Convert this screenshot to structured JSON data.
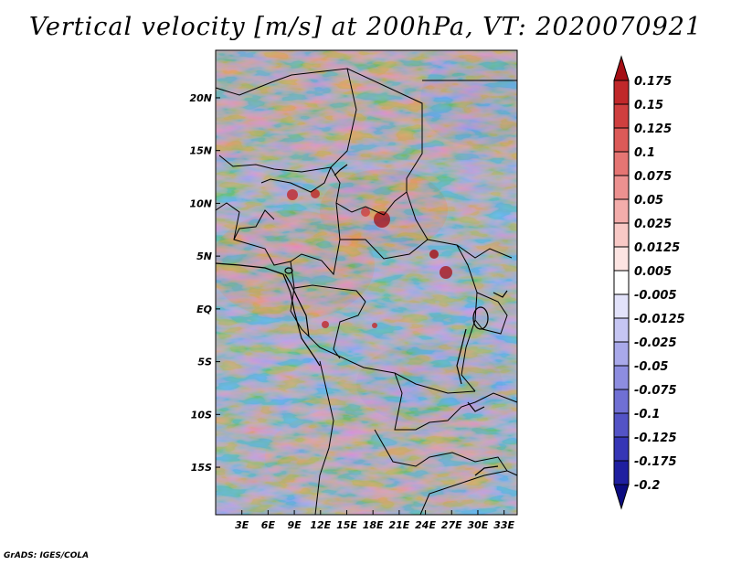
{
  "title": "Vertical velocity [m/s] at 200hPa, VT: 2020070921",
  "credit": "GrADS: IGES/COLA",
  "map": {
    "variable": "Vertical velocity",
    "units": "m/s",
    "level": "200hPa",
    "valid_time": "2020070921",
    "lon_range": [
      0,
      34.5
    ],
    "lat_range": [
      -19.5,
      24.5
    ],
    "lon_ticks": [
      {
        "value": 3,
        "label": "3E"
      },
      {
        "value": 6,
        "label": "6E"
      },
      {
        "value": 9,
        "label": "9E"
      },
      {
        "value": 12,
        "label": "12E"
      },
      {
        "value": 15,
        "label": "15E"
      },
      {
        "value": 18,
        "label": "18E"
      },
      {
        "value": 21,
        "label": "21E"
      },
      {
        "value": 24,
        "label": "24E"
      },
      {
        "value": 27,
        "label": "27E"
      },
      {
        "value": 30,
        "label": "30E"
      },
      {
        "value": 33,
        "label": "33E"
      }
    ],
    "lat_ticks": [
      {
        "value": 20,
        "label": "20N"
      },
      {
        "value": 15,
        "label": "15N"
      },
      {
        "value": 10,
        "label": "10N"
      },
      {
        "value": 5,
        "label": "5N"
      },
      {
        "value": 0,
        "label": "EQ"
      },
      {
        "value": -5,
        "label": "5S"
      },
      {
        "value": -10,
        "label": "10S"
      },
      {
        "value": -15,
        "label": "15S"
      }
    ]
  },
  "colorbar": {
    "levels": [
      "0.175",
      "0.15",
      "0.125",
      "0.1",
      "0.075",
      "0.05",
      "0.025",
      "0.0125",
      "0.005",
      "-0.005",
      "-0.0125",
      "-0.025",
      "-0.05",
      "-0.075",
      "-0.1",
      "-0.125",
      "-0.175",
      "-0.2"
    ],
    "colors": [
      "#a50f15",
      "#c0282a",
      "#cf3f3f",
      "#dc5a58",
      "#e57573",
      "#ec9190",
      "#f3adab",
      "#f8c9c6",
      "#fce4e2",
      "#ffffff",
      "#e2e2fa",
      "#c6c6f3",
      "#a9a9ea",
      "#8d8de0",
      "#7070d4",
      "#5353c6",
      "#3636b6",
      "#1f1fa0",
      "#0c0c80"
    ]
  }
}
